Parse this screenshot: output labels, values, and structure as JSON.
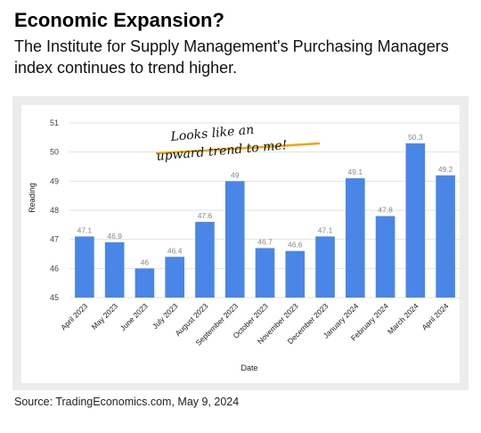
{
  "headline": "Economic Expansion?",
  "subhead": "The Institute for Supply Management's Purchasing Managers index continues to trend higher.",
  "source": "Source: TradingEconomics.com, May 9, 2024",
  "annotation": {
    "line1": "Looks like an",
    "line2": "upward trend to me!",
    "highlight_color": "#f0a500"
  },
  "chart_data": {
    "type": "bar",
    "xlabel": "Date",
    "ylabel": "Reading",
    "ylim": [
      45,
      51
    ],
    "yticks": [
      45,
      46,
      47,
      48,
      49,
      50,
      51
    ],
    "grid": true,
    "bar_color": "#4a86e8",
    "categories": [
      "April 2023",
      "May 2023",
      "June 2023",
      "July 2023",
      "August 2023",
      "September 2023",
      "October 2023",
      "November 2023",
      "December 2023",
      "January 2024",
      "February 2024",
      "March 2024",
      "April 2024"
    ],
    "values": [
      47.1,
      46.9,
      46,
      46.4,
      47.6,
      49,
      46.7,
      46.6,
      47.1,
      49.1,
      47.8,
      50.3,
      49.2
    ],
    "value_labels": [
      "47.1",
      "46.9",
      "46",
      "46.4",
      "47.6",
      "49",
      "46.7",
      "46.6",
      "47.1",
      "49.1",
      "47.8",
      "50.3",
      "49.2"
    ]
  }
}
